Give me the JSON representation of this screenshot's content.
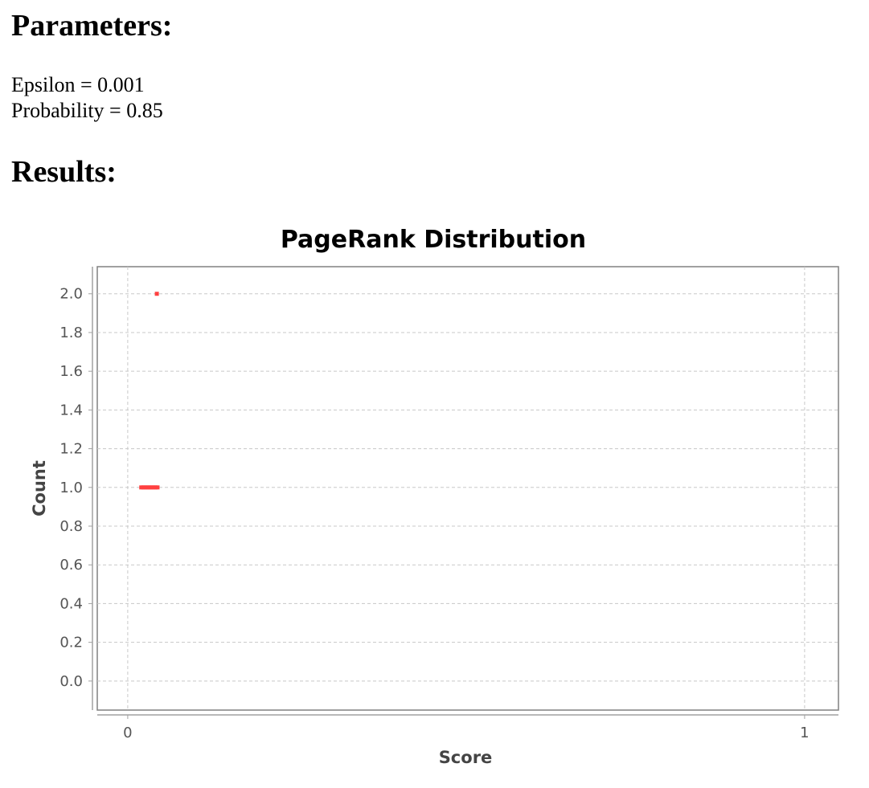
{
  "parameters": {
    "heading": "Parameters:",
    "lines": [
      "Epsilon = 0.001",
      "Probability = 0.85"
    ]
  },
  "results": {
    "heading": "Results:"
  },
  "chart_data": {
    "type": "scatter",
    "title": "PageRank Distribution",
    "xlabel": "Score",
    "ylabel": "Count",
    "xlim": [
      -0.045,
      1.05
    ],
    "ylim": [
      -0.15,
      2.14
    ],
    "x_ticks": [
      0,
      1
    ],
    "x_tick_labels": [
      "0",
      "1"
    ],
    "y_ticks": [
      0.0,
      0.2,
      0.4,
      0.6,
      0.8,
      1.0,
      1.2,
      1.4,
      1.6,
      1.8,
      2.0
    ],
    "y_tick_labels": [
      "0.0",
      "0.2",
      "0.4",
      "0.6",
      "0.8",
      "1.0",
      "1.2",
      "1.4",
      "1.6",
      "1.8",
      "2.0"
    ],
    "grid": true,
    "point_color": "#ff4040",
    "series": [
      {
        "points": [
          {
            "x": 0.043,
            "y": 2.0
          },
          {
            "x": 0.02,
            "y": 1.0
          },
          {
            "x": 0.023,
            "y": 1.0
          },
          {
            "x": 0.026,
            "y": 1.0
          },
          {
            "x": 0.029,
            "y": 1.0
          },
          {
            "x": 0.032,
            "y": 1.0
          },
          {
            "x": 0.035,
            "y": 1.0
          },
          {
            "x": 0.038,
            "y": 1.0
          },
          {
            "x": 0.041,
            "y": 1.0
          },
          {
            "x": 0.044,
            "y": 1.0
          }
        ]
      }
    ]
  }
}
